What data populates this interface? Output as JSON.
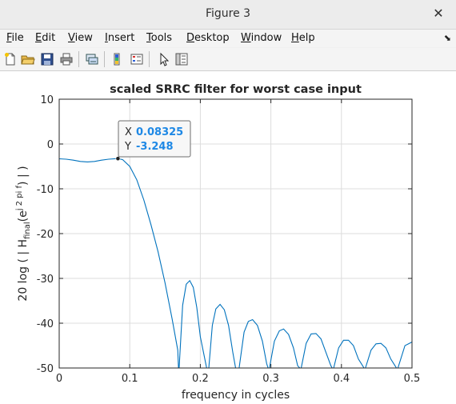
{
  "window": {
    "title": "Figure 3"
  },
  "menu": {
    "items": [
      {
        "label": "File",
        "key": "F"
      },
      {
        "label": "Edit",
        "key": "E"
      },
      {
        "label": "View",
        "key": "V"
      },
      {
        "label": "Insert",
        "key": "I"
      },
      {
        "label": "Tools",
        "key": "T"
      },
      {
        "label": "Desktop",
        "key": "D"
      },
      {
        "label": "Window",
        "key": "W"
      },
      {
        "label": "Help",
        "key": "H"
      }
    ],
    "dock_glyph": "⬊"
  },
  "toolbar": {
    "icons": [
      "new-figure-icon",
      "open-file-icon",
      "save-icon",
      "print-icon",
      "link-plot-icon",
      "insert-colorbar-icon",
      "insert-legend-icon",
      "edit-plot-icon",
      "property-inspector-icon"
    ]
  },
  "chart_data": {
    "type": "line",
    "title": "scaled SRRC filter for worst case input",
    "xlabel": "frequency in cycles",
    "ylabel_parts": [
      "20  log ( | H",
      "final",
      "(e",
      "j 2 pi f",
      ") | )"
    ],
    "xlim": [
      0,
      0.5
    ],
    "ylim": [
      -50,
      10
    ],
    "xticks": [
      0,
      0.1,
      0.2,
      0.3,
      0.4,
      0.5
    ],
    "xtick_labels": [
      "0",
      "0.1",
      "0.2",
      "0.3",
      "0.4",
      "0.5"
    ],
    "yticks": [
      10,
      0,
      -10,
      -20,
      -30,
      -40,
      -50
    ],
    "ytick_labels": [
      "10",
      "0",
      "-10",
      "-20",
      "-30",
      "-40",
      "-50"
    ],
    "grid": true,
    "line_color": "#0072bd",
    "series": [
      {
        "x": [
          0,
          0.01,
          0.02,
          0.03,
          0.04,
          0.05,
          0.06,
          0.07,
          0.08325,
          0.09,
          0.1,
          0.11,
          0.12,
          0.13,
          0.14,
          0.15,
          0.16,
          0.168,
          0.169,
          0.17,
          0.175,
          0.18,
          0.185,
          0.19,
          0.195,
          0.2,
          0.207,
          0.209,
          0.212,
          0.217,
          0.222,
          0.228,
          0.234,
          0.24,
          0.246,
          0.25,
          0.252,
          0.255,
          0.262,
          0.268,
          0.274,
          0.281,
          0.288,
          0.294,
          0.296,
          0.298,
          0.305,
          0.312,
          0.318,
          0.325,
          0.332,
          0.338,
          0.341,
          0.343,
          0.35,
          0.357,
          0.364,
          0.371,
          0.378,
          0.385,
          0.387,
          0.389,
          0.396,
          0.403,
          0.41,
          0.417,
          0.424,
          0.43,
          0.432,
          0.434,
          0.442,
          0.449,
          0.456,
          0.463,
          0.47,
          0.476,
          0.478,
          0.48,
          0.49,
          0.5
        ],
        "y": [
          -3.3,
          -3.4,
          -3.6,
          -3.9,
          -4.0,
          -3.9,
          -3.6,
          -3.4,
          -3.248,
          -3.5,
          -5.0,
          -8.0,
          -12.5,
          -18.0,
          -24.0,
          -31.0,
          -39.0,
          -46.0,
          -50,
          -50,
          -36.0,
          -31.3,
          -30.5,
          -32.0,
          -36.5,
          -43.0,
          -48.5,
          -50,
          -50,
          -40.5,
          -36.8,
          -35.8,
          -37.0,
          -40.5,
          -46.5,
          -50,
          -50,
          -50,
          -42.0,
          -39.6,
          -39.2,
          -40.5,
          -44.0,
          -49.0,
          -50,
          -50,
          -44.0,
          -41.7,
          -41.3,
          -42.5,
          -45.5,
          -49.5,
          -50,
          -50,
          -44.5,
          -42.4,
          -42.3,
          -43.5,
          -46.5,
          -49.5,
          -50,
          -50,
          -45.5,
          -43.8,
          -43.8,
          -45.0,
          -48.0,
          -49.5,
          -50,
          -50,
          -46.0,
          -44.6,
          -44.5,
          -45.5,
          -48.0,
          -49.5,
          -50,
          -50,
          -45.0,
          -44.2
        ]
      }
    ],
    "datatip": {
      "x_label": "X",
      "x_value": "0.08325",
      "y_label": "Y",
      "y_value": "-3.248",
      "x": 0.08325,
      "y": -3.248
    }
  }
}
